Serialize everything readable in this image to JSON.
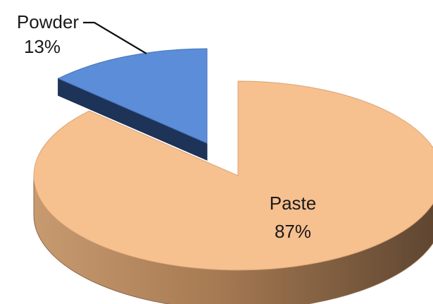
{
  "chart_data": {
    "type": "pie",
    "style": "3d-exploded",
    "slices": [
      {
        "name": "Paste",
        "value": 87,
        "label": "87%",
        "color": "#F6C08F",
        "exploded": false
      },
      {
        "name": "Powder",
        "value": 13,
        "label": "13%",
        "color": "#5B8DD8",
        "exploded": true
      }
    ],
    "legend": "none",
    "title": ""
  }
}
